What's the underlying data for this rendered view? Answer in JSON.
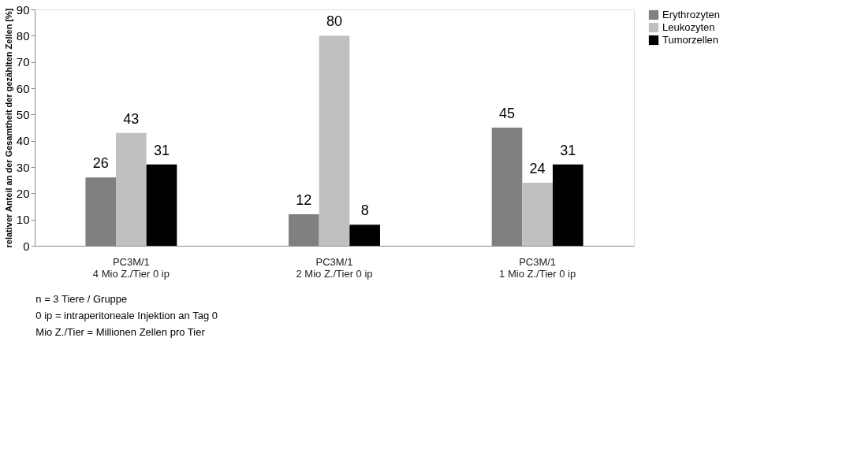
{
  "chart_data": {
    "type": "bar",
    "ylabel": "relativer Anteil an der Gesamtheit der gezählten Zellen [%]",
    "categories": [
      "PC3M/1\n4 Mio Z./Tier 0 ip",
      "PC3M/1\n2 Mio Z./Tier 0 ip",
      "PC3M/1\n1 Mio Z./Tier 0 ip"
    ],
    "series": [
      {
        "name": "Erythrozyten",
        "color": "#808080",
        "values": [
          26,
          12,
          45
        ]
      },
      {
        "name": "Leukozyten",
        "color": "#c0c0c0",
        "values": [
          43,
          80,
          24
        ]
      },
      {
        "name": "Tumorzellen",
        "color": "#000000",
        "values": [
          31,
          8,
          31
        ]
      }
    ],
    "ylim": [
      0,
      90
    ],
    "yticks": [
      0,
      10,
      20,
      30,
      40,
      50,
      60,
      70,
      80,
      90
    ],
    "grid": false,
    "legend": "top right",
    "data_labels": true,
    "annotations": [
      "n = 3 Tiere / Gruppe",
      "0 ip = intraperitoneale Injektion an Tag 0",
      "Mio Z./Tier = Millionen Zellen pro Tier"
    ]
  }
}
